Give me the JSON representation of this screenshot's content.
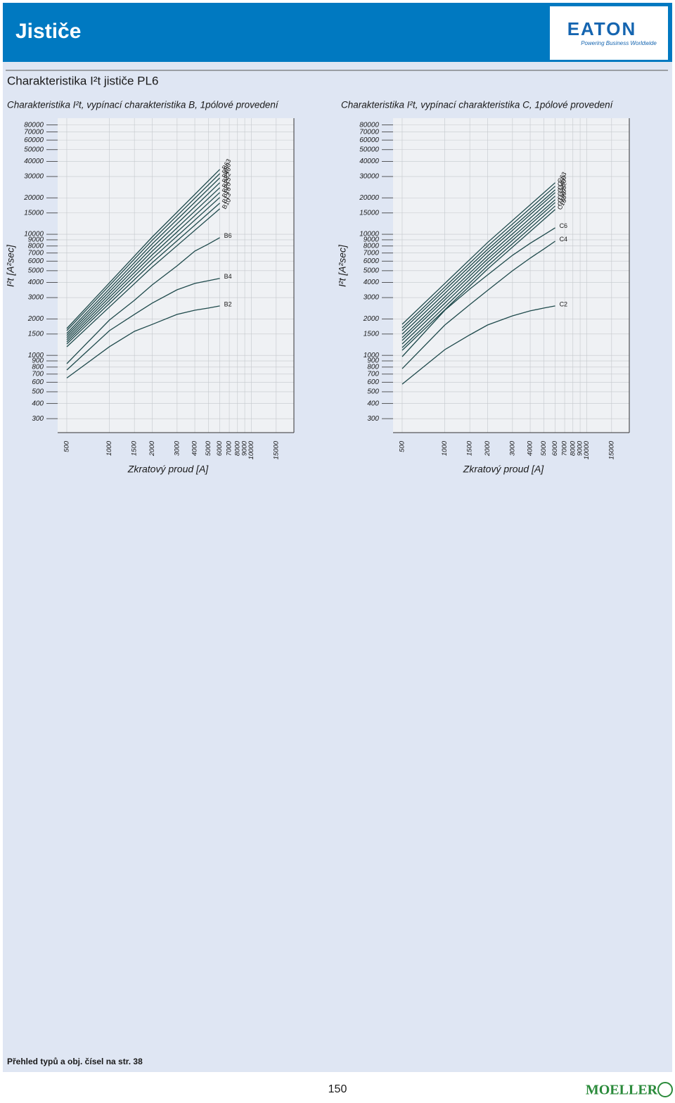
{
  "header": {
    "title": "Jističe",
    "logo": "EATON",
    "tagline": "Powering Business Worldwide"
  },
  "page_title": "Charakteristika I²t jističe PL6",
  "chart_data": [
    {
      "type": "line",
      "subtitle": "Charakteristika I²t, vypínací charakteristika B, 1pólové provedení",
      "x_label": "Zkratový proud [A]",
      "y_label": "I²t [A²sec]",
      "xscale": "log",
      "yscale": "log",
      "grid": true,
      "xlim": [
        376,
        20000
      ],
      "ylim": [
        230,
        91000
      ],
      "xticks": [
        500,
        1000,
        1500,
        2000,
        3000,
        4000,
        5000,
        6000,
        7000,
        8000,
        9000,
        10000,
        15000
      ],
      "yticks": [
        80000,
        70000,
        60000,
        50000,
        40000,
        30000,
        20000,
        15000,
        10000,
        9000,
        8000,
        7000,
        6000,
        5000,
        4000,
        3000,
        2000,
        1500,
        1000,
        900,
        800,
        700,
        600,
        500,
        400,
        300
      ],
      "series": [
        {
          "name": "B2",
          "color": "#1f4a4c",
          "x": [
            500,
            1000,
            1500,
            2000,
            3000,
            4000,
            5000,
            6000
          ],
          "values": [
            650,
            1180,
            1580,
            1800,
            2180,
            2360,
            2460,
            2560
          ]
        },
        {
          "name": "B4",
          "color": "#1f4a4c",
          "x": [
            500,
            1000,
            1500,
            2000,
            3000,
            4000,
            5000,
            6000
          ],
          "values": [
            757,
            1600,
            2180,
            2700,
            3480,
            3930,
            4140,
            4320
          ]
        },
        {
          "name": "B6",
          "color": "#1f4a4c",
          "x": [
            500,
            1000,
            1500,
            2000,
            3000,
            4000,
            5000,
            6000
          ],
          "values": [
            853,
            1960,
            2850,
            3820,
            5490,
            7270,
            8320,
            9380
          ]
        },
        {
          "name": "B10",
          "color": "#1f4a4c",
          "x": [
            500,
            2000,
            6000
          ],
          "values": [
            1177,
            5360,
            16240
          ]
        },
        {
          "name": "B13",
          "color": "#1f4a4c",
          "x": [
            500,
            2000,
            6000
          ],
          "values": [
            1241,
            5820,
            18090
          ]
        },
        {
          "name": "B16",
          "color": "#1f4a4c",
          "x": [
            500,
            2000,
            6000
          ],
          "values": [
            1292,
            6290,
            20140
          ]
        },
        {
          "name": "B20",
          "color": "#1f4a4c",
          "x": [
            500,
            2000,
            6000
          ],
          "values": [
            1345,
            6750,
            22110
          ]
        },
        {
          "name": "B25",
          "color": "#1f4a4c",
          "x": [
            500,
            2000,
            6000
          ],
          "values": [
            1400,
            7240,
            24280
          ]
        },
        {
          "name": "B32",
          "color": "#1f4a4c",
          "x": [
            500,
            2000,
            6000
          ],
          "values": [
            1457,
            7760,
            26670
          ]
        },
        {
          "name": "B40",
          "color": "#1f4a4c",
          "x": [
            500,
            2000,
            6000
          ],
          "values": [
            1517,
            8320,
            29280
          ]
        },
        {
          "name": "B50",
          "color": "#1f4a4c",
          "x": [
            500,
            2000,
            6000
          ],
          "values": [
            1601,
            8920,
            31730
          ]
        },
        {
          "name": "B63",
          "color": "#1f4a4c",
          "x": [
            500,
            2000,
            6000
          ],
          "values": [
            1666,
            9490,
            34380
          ]
        }
      ]
    },
    {
      "type": "line",
      "subtitle": "Charakteristika I²t, vypínací charakteristika C, 1pólové provedení",
      "x_label": "Zkratový proud [A]",
      "y_label": "I²t [A²sec]",
      "xscale": "log",
      "yscale": "log",
      "grid": true,
      "xlim": [
        376,
        20000
      ],
      "ylim": [
        230,
        91000
      ],
      "xticks": [
        500,
        1000,
        1500,
        2000,
        3000,
        4000,
        5000,
        6000,
        7000,
        8000,
        9000,
        10000,
        15000
      ],
      "yticks": [
        80000,
        70000,
        60000,
        50000,
        40000,
        30000,
        20000,
        15000,
        10000,
        9000,
        8000,
        7000,
        6000,
        5000,
        4000,
        3000,
        2000,
        1500,
        1000,
        900,
        800,
        700,
        600,
        500,
        400,
        300
      ],
      "series": [
        {
          "name": "C2",
          "color": "#1f4a4c",
          "x": [
            500,
            1000,
            1500,
            2000,
            3000,
            4000,
            5000,
            6000
          ],
          "values": [
            578,
            1115,
            1477,
            1782,
            2120,
            2330,
            2460,
            2560
          ]
        },
        {
          "name": "C4",
          "color": "#1f4a4c",
          "x": [
            500,
            1000,
            1500,
            2000,
            3000,
            4000,
            5000,
            6000
          ],
          "values": [
            776,
            1782,
            2626,
            3436,
            5000,
            6360,
            7570,
            8770
          ]
        },
        {
          "name": "C6",
          "color": "#1f4a4c",
          "x": [
            500,
            1000,
            1500,
            2000,
            3000,
            4000,
            5000,
            6000
          ],
          "values": [
            975,
            2360,
            3530,
            4610,
            6710,
            8430,
            9900,
            11320
          ]
        },
        {
          "name": "C10",
          "color": "#1f4a4c",
          "x": [
            500,
            2000,
            6000
          ],
          "values": [
            1100,
            5160,
            16030
          ]
        },
        {
          "name": "C13",
          "color": "#1f4a4c",
          "x": [
            500,
            2000,
            6000
          ],
          "values": [
            1160,
            5490,
            17140
          ]
        },
        {
          "name": "C16",
          "color": "#1f4a4c",
          "x": [
            500,
            2000,
            6000
          ],
          "values": [
            1241,
            5870,
            18330
          ]
        },
        {
          "name": "C20",
          "color": "#1f4a4c",
          "x": [
            500,
            2000,
            6000
          ],
          "values": [
            1327,
            6230,
            19340
          ]
        },
        {
          "name": "C25",
          "color": "#1f4a4c",
          "x": [
            500,
            2000,
            6000
          ],
          "values": [
            1400,
            6620,
            20680
          ]
        },
        {
          "name": "C32",
          "color": "#1f4a4c",
          "x": [
            500,
            2000,
            6000
          ],
          "values": [
            1497,
            7080,
            22110
          ]
        },
        {
          "name": "C40",
          "color": "#1f4a4c",
          "x": [
            500,
            2000,
            6000
          ],
          "values": [
            1601,
            7510,
            23320
          ]
        },
        {
          "name": "C50",
          "color": "#1f4a4c",
          "x": [
            500,
            2000,
            6000
          ],
          "values": [
            1688,
            7990,
            24940
          ]
        },
        {
          "name": "C63",
          "color": "#1f4a4c",
          "x": [
            500,
            2000,
            6000
          ],
          "values": [
            1806,
            8540,
            26670
          ]
        }
      ]
    }
  ],
  "footer": {
    "note": "Přehled typů a obj. čísel na str. 38",
    "page": 150,
    "brand": "MOELLER"
  }
}
